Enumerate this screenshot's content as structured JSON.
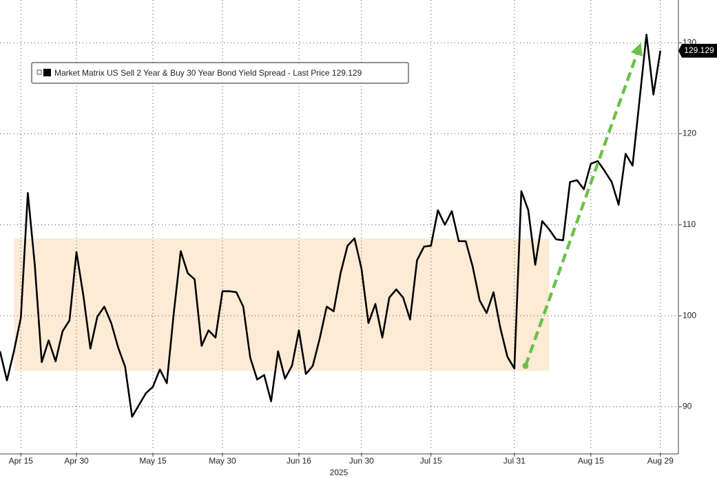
{
  "chart_data": {
    "type": "line",
    "series": [
      {
        "name": "Market Matrix US Sell 2 Year & Buy 30 Year Bond Yield Spread",
        "color": "#000000",
        "values": [
          96.1,
          92.9,
          96.1,
          99.8,
          113.5,
          105.6,
          94.9,
          97.3,
          95.0,
          98.3,
          99.5,
          107.0,
          102.2,
          96.4,
          99.9,
          101.0,
          99.2,
          96.5,
          94.4,
          88.9,
          90.2,
          91.5,
          92.2,
          94.1,
          92.6,
          100.3,
          107.1,
          104.7,
          104.0,
          96.7,
          98.4,
          97.6,
          102.7,
          102.7,
          102.6,
          101.0,
          95.4,
          93.0,
          93.5,
          90.6,
          96.1,
          93.1,
          94.5,
          98.4,
          93.6,
          94.5,
          97.5,
          101.0,
          100.5,
          104.7,
          107.7,
          108.5,
          105.2,
          99.2,
          101.3,
          97.6,
          102.0,
          102.9,
          102.0,
          99.6,
          106.1,
          107.6,
          107.7,
          111.6,
          110.0,
          111.5,
          108.2,
          108.2,
          105.4,
          101.7,
          100.3,
          102.6,
          98.6,
          95.5,
          94.2,
          113.7,
          111.6,
          105.6,
          110.4,
          109.5,
          108.4,
          108.3,
          114.7,
          114.9,
          113.9,
          116.7,
          117.0,
          115.9,
          114.7,
          112.2,
          117.8,
          116.5,
          123.7,
          130.9,
          124.3,
          129.129
        ]
      }
    ],
    "x": [
      0,
      1,
      2,
      3,
      4,
      5,
      6,
      7,
      8,
      9,
      10,
      11,
      12,
      13,
      14,
      15,
      16,
      17,
      18,
      19,
      20,
      21,
      22,
      23,
      24,
      25,
      26,
      27,
      28,
      29,
      30,
      31,
      32,
      33,
      34,
      35,
      36,
      37,
      38,
      39,
      40,
      41,
      42,
      43,
      44,
      45,
      46,
      47,
      48,
      49,
      50,
      51,
      52,
      53,
      54,
      55,
      56,
      57,
      58,
      59,
      60,
      61,
      62,
      63,
      64,
      65,
      66,
      67,
      68,
      69,
      70,
      71,
      72,
      73,
      74,
      75,
      76,
      77,
      78,
      79,
      80,
      81,
      82,
      83,
      84,
      85,
      86,
      87,
      88,
      89,
      90,
      91,
      92,
      93,
      94,
      95
    ],
    "legend_price_label": "- Last Price",
    "last_price": 129.129,
    "xlim": [
      0,
      97.6
    ],
    "xticks": [
      {
        "value": 3,
        "label": "Apr 15"
      },
      {
        "value": 11,
        "label": "Apr 30"
      },
      {
        "value": 22,
        "label": "May 15"
      },
      {
        "value": 32,
        "label": "May 30"
      },
      {
        "value": 43,
        "label": "Jun 16"
      },
      {
        "value": 52,
        "label": "Jun 30"
      },
      {
        "value": 62,
        "label": "Jul 15"
      },
      {
        "value": 74,
        "label": "Jul 31"
      },
      {
        "value": 85,
        "label": "Aug 15"
      },
      {
        "value": 95,
        "label": "Aug 29"
      }
    ],
    "x_axis_label": "2025",
    "ylim": [
      85.2,
      134.7
    ],
    "yticks": [
      90,
      100,
      110,
      120,
      130
    ],
    "grid": true,
    "highlight": {
      "xlim": [
        2,
        79
      ],
      "ylim": [
        93.95,
        108.5
      ],
      "color": "#fdebd6"
    },
    "arrow": {
      "x": [
        75.6,
        92.2
      ],
      "y": [
        94.5,
        130
      ],
      "color": "#6cc04a"
    }
  }
}
